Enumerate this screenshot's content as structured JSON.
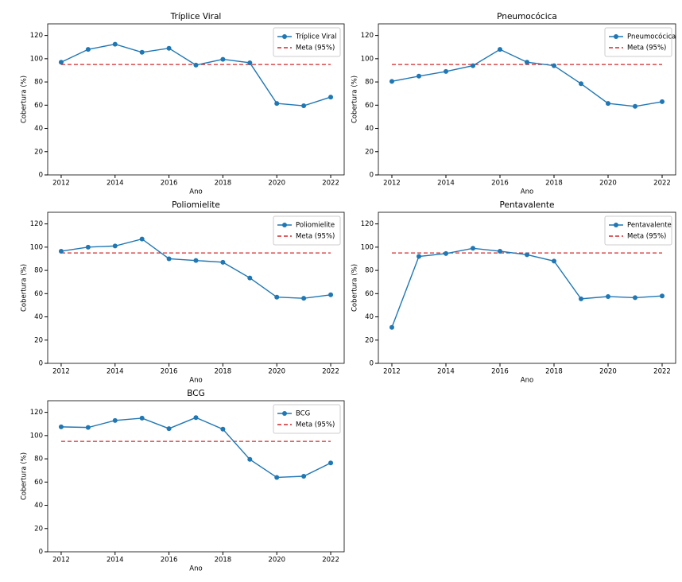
{
  "chart_data": [
    {
      "type": "line",
      "title": "Tríplice Viral",
      "xlabel": "Ano",
      "ylabel": "Cobertura (%)",
      "x": [
        2012,
        2013,
        2014,
        2015,
        2016,
        2017,
        2018,
        2019,
        2020,
        2021,
        2022
      ],
      "series": [
        {
          "name": "Tríplice Viral",
          "color": "#1f77b4",
          "values": [
            97,
            108,
            112.5,
            105.5,
            109,
            94.5,
            99.5,
            96.5,
            61.5,
            59.5,
            67
          ]
        }
      ],
      "target": {
        "name": "Meta (95%)",
        "value": 95,
        "color": "#d62728"
      },
      "xlim": [
        2011.5,
        2022.5
      ],
      "xticks": [
        2012,
        2014,
        2016,
        2018,
        2020,
        2022
      ],
      "ylim": [
        0,
        130
      ],
      "yticks": [
        0,
        20,
        40,
        60,
        80,
        100,
        120
      ],
      "legend": "upper right"
    },
    {
      "type": "line",
      "title": "Pneumocócica",
      "xlabel": "Ano",
      "ylabel": "Cobertura (%)",
      "x": [
        2012,
        2013,
        2014,
        2015,
        2016,
        2017,
        2018,
        2019,
        2020,
        2021,
        2022
      ],
      "series": [
        {
          "name": "Pneumocócica",
          "color": "#1f77b4",
          "values": [
            80.5,
            85,
            89,
            94,
            108,
            97,
            94,
            78.5,
            61.5,
            59,
            63
          ]
        }
      ],
      "target": {
        "name": "Meta (95%)",
        "value": 95,
        "color": "#d62728"
      },
      "xlim": [
        2011.5,
        2022.5
      ],
      "xticks": [
        2012,
        2014,
        2016,
        2018,
        2020,
        2022
      ],
      "ylim": [
        0,
        130
      ],
      "yticks": [
        0,
        20,
        40,
        60,
        80,
        100,
        120
      ],
      "legend": "upper right"
    },
    {
      "type": "line",
      "title": "Poliomielite",
      "xlabel": "Ano",
      "ylabel": "Cobertura (%)",
      "x": [
        2012,
        2013,
        2014,
        2015,
        2016,
        2017,
        2018,
        2019,
        2020,
        2021,
        2022
      ],
      "series": [
        {
          "name": "Poliomielite",
          "color": "#1f77b4",
          "values": [
            96.5,
            100,
            101,
            107,
            90,
            88.5,
            87,
            73.5,
            57,
            56,
            59
          ]
        }
      ],
      "target": {
        "name": "Meta (95%)",
        "value": 95,
        "color": "#d62728"
      },
      "xlim": [
        2011.5,
        2022.5
      ],
      "xticks": [
        2012,
        2014,
        2016,
        2018,
        2020,
        2022
      ],
      "ylim": [
        0,
        130
      ],
      "yticks": [
        0,
        20,
        40,
        60,
        80,
        100,
        120
      ],
      "legend": "upper right"
    },
    {
      "type": "line",
      "title": "Pentavalente",
      "xlabel": "Ano",
      "ylabel": "Cobertura (%)",
      "x": [
        2012,
        2013,
        2014,
        2015,
        2016,
        2017,
        2018,
        2019,
        2020,
        2021,
        2022
      ],
      "series": [
        {
          "name": "Pentavalente",
          "color": "#1f77b4",
          "values": [
            31,
            92,
            94.5,
            99,
            96.5,
            93.5,
            88,
            55.5,
            57.5,
            56.5,
            58
          ]
        }
      ],
      "target": {
        "name": "Meta (95%)",
        "value": 95,
        "color": "#d62728"
      },
      "xlim": [
        2011.5,
        2022.5
      ],
      "xticks": [
        2012,
        2014,
        2016,
        2018,
        2020,
        2022
      ],
      "ylim": [
        0,
        130
      ],
      "yticks": [
        0,
        20,
        40,
        60,
        80,
        100,
        120
      ],
      "legend": "upper right"
    },
    {
      "type": "line",
      "title": "BCG",
      "xlabel": "Ano",
      "ylabel": "Cobertura (%)",
      "x": [
        2012,
        2013,
        2014,
        2015,
        2016,
        2017,
        2018,
        2019,
        2020,
        2021,
        2022
      ],
      "series": [
        {
          "name": "BCG",
          "color": "#1f77b4",
          "values": [
            107.5,
            107,
            113,
            115,
            106,
            115.5,
            105.5,
            79.5,
            64,
            65,
            76.5
          ]
        }
      ],
      "target": {
        "name": "Meta (95%)",
        "value": 95,
        "color": "#d62728"
      },
      "xlim": [
        2011.5,
        2022.5
      ],
      "xticks": [
        2012,
        2014,
        2016,
        2018,
        2020,
        2022
      ],
      "ylim": [
        0,
        130
      ],
      "yticks": [
        0,
        20,
        40,
        60,
        80,
        100,
        120
      ],
      "legend": "upper right"
    }
  ]
}
